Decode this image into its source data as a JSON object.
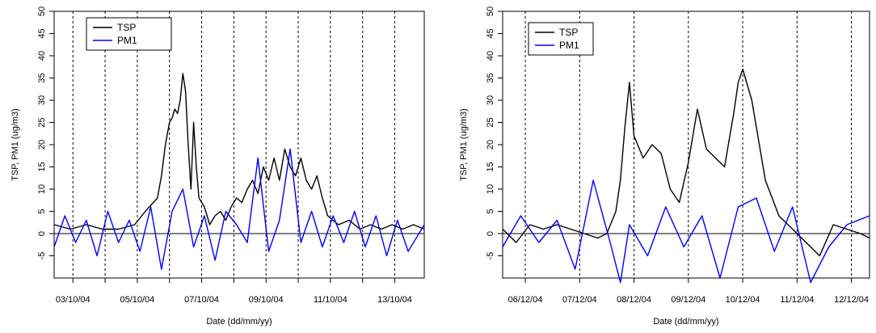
{
  "chart_data": [
    {
      "type": "line",
      "xlabel": "Date (dd/mm/yy)",
      "ylabel": "TSP, PM1 (ug/m3)",
      "xlim": [
        "2004-10-02T10:00",
        "2004-10-13T22:00"
      ],
      "ylim": [
        -10,
        50
      ],
      "y_ticks": [
        -5,
        0,
        5,
        10,
        15,
        20,
        25,
        30,
        35,
        40,
        45,
        50
      ],
      "x_ticks": [
        {
          "x": "2004-10-03",
          "label": "03/10/04"
        },
        {
          "x": "2004-10-04",
          "label": ""
        },
        {
          "x": "2004-10-05",
          "label": "05/10/04"
        },
        {
          "x": "2004-10-06",
          "label": ""
        },
        {
          "x": "2004-10-07",
          "label": "07/10/04"
        },
        {
          "x": "2004-10-08",
          "label": ""
        },
        {
          "x": "2004-10-09",
          "label": "09/10/04"
        },
        {
          "x": "2004-10-10",
          "label": ""
        },
        {
          "x": "2004-10-11",
          "label": "11/10/04"
        },
        {
          "x": "2004-10-12",
          "label": ""
        },
        {
          "x": "2004-10-13",
          "label": "13/10/04"
        }
      ],
      "day_gridlines": "dashed vertical at each midnight",
      "zero_line": true,
      "legend": "top-left",
      "series": [
        {
          "name": "TSP",
          "color": "#000000",
          "x": [
            "2004-10-02T10:00",
            "2004-10-02T22:00",
            "2004-10-03T10:00",
            "2004-10-03T22:00",
            "2004-10-04T10:00",
            "2004-10-04T22:00",
            "2004-10-05T06:00",
            "2004-10-05T12:00",
            "2004-10-05T15:00",
            "2004-10-05T18:00",
            "2004-10-05T21:00",
            "2004-10-06T00:00",
            "2004-10-06T02:00",
            "2004-10-06T04:00",
            "2004-10-06T06:00",
            "2004-10-06T08:00",
            "2004-10-06T10:00",
            "2004-10-06T12:00",
            "2004-10-06T14:00",
            "2004-10-06T16:00",
            "2004-10-06T18:00",
            "2004-10-06T20:00",
            "2004-10-06T22:00",
            "2004-10-07T02:00",
            "2004-10-07T06:00",
            "2004-10-07T10:00",
            "2004-10-07T14:00",
            "2004-10-07T18:00",
            "2004-10-07T22:00",
            "2004-10-08T02:00",
            "2004-10-08T06:00",
            "2004-10-08T10:00",
            "2004-10-08T14:00",
            "2004-10-08T18:00",
            "2004-10-08T22:00",
            "2004-10-09T02:00",
            "2004-10-09T06:00",
            "2004-10-09T10:00",
            "2004-10-09T14:00",
            "2004-10-09T18:00",
            "2004-10-09T22:00",
            "2004-10-10T02:00",
            "2004-10-10T06:00",
            "2004-10-10T10:00",
            "2004-10-10T14:00",
            "2004-10-10T18:00",
            "2004-10-10T22:00",
            "2004-10-11T06:00",
            "2004-10-11T14:00",
            "2004-10-11T22:00",
            "2004-10-12T06:00",
            "2004-10-12T14:00",
            "2004-10-12T22:00",
            "2004-10-13T06:00",
            "2004-10-13T14:00",
            "2004-10-13T22:00"
          ],
          "y": [
            2,
            1,
            2,
            1,
            1,
            2,
            5,
            7,
            8,
            13,
            20,
            25,
            26,
            28,
            27,
            30,
            36,
            32,
            20,
            10,
            25,
            15,
            8,
            6,
            2,
            4,
            5,
            3,
            6,
            8,
            7,
            10,
            12,
            9,
            15,
            12,
            17,
            12,
            19,
            15,
            13,
            17,
            12,
            10,
            13,
            8,
            4,
            2,
            3,
            1,
            2,
            1,
            2,
            1,
            2,
            1
          ]
        },
        {
          "name": "PM1",
          "color": "#0000ff",
          "x": [
            "2004-10-02T10:00",
            "2004-10-02T18:00",
            "2004-10-03T02:00",
            "2004-10-03T10:00",
            "2004-10-03T18:00",
            "2004-10-04T02:00",
            "2004-10-04T10:00",
            "2004-10-04T18:00",
            "2004-10-05T02:00",
            "2004-10-05T10:00",
            "2004-10-05T18:00",
            "2004-10-06T02:00",
            "2004-10-06T10:00",
            "2004-10-06T18:00",
            "2004-10-07T02:00",
            "2004-10-07T10:00",
            "2004-10-07T18:00",
            "2004-10-08T02:00",
            "2004-10-08T10:00",
            "2004-10-08T18:00",
            "2004-10-09T02:00",
            "2004-10-09T10:00",
            "2004-10-09T18:00",
            "2004-10-10T02:00",
            "2004-10-10T10:00",
            "2004-10-10T18:00",
            "2004-10-11T02:00",
            "2004-10-11T10:00",
            "2004-10-11T18:00",
            "2004-10-12T02:00",
            "2004-10-12T10:00",
            "2004-10-12T18:00",
            "2004-10-13T02:00",
            "2004-10-13T10:00",
            "2004-10-13T22:00"
          ],
          "y": [
            -3,
            4,
            -2,
            3,
            -5,
            5,
            -2,
            3,
            -4,
            6,
            -8,
            5,
            10,
            -3,
            4,
            -6,
            5,
            2,
            -2,
            17,
            -4,
            3,
            19,
            -2,
            5,
            -3,
            4,
            -2,
            5,
            -3,
            4,
            -5,
            3,
            -4,
            2
          ]
        }
      ]
    },
    {
      "type": "line",
      "xlabel": "Date (dd/mm/yy)",
      "ylabel": "TSP, PM1 (ug/m3)",
      "xlim": [
        "2004-12-05T14:00",
        "2004-12-12T08:00"
      ],
      "ylim": [
        -10,
        50
      ],
      "y_ticks": [
        -5,
        0,
        5,
        10,
        15,
        20,
        25,
        30,
        35,
        40,
        45,
        50
      ],
      "x_ticks": [
        {
          "x": "2004-12-06",
          "label": "06/12/04"
        },
        {
          "x": "2004-12-07",
          "label": "07/12/04"
        },
        {
          "x": "2004-12-08",
          "label": "08/12/04"
        },
        {
          "x": "2004-12-09",
          "label": "09/12/04"
        },
        {
          "x": "2004-12-10",
          "label": "10/12/04"
        },
        {
          "x": "2004-12-11",
          "label": "11/12/04"
        },
        {
          "x": "2004-12-12",
          "label": "12/12/04"
        }
      ],
      "day_gridlines": "dashed vertical at each midnight",
      "zero_line": true,
      "legend": "top-left",
      "series": [
        {
          "name": "TSP",
          "color": "#000000",
          "x": [
            "2004-12-05T14:00",
            "2004-12-05T20:00",
            "2004-12-06T02:00",
            "2004-12-06T08:00",
            "2004-12-06T14:00",
            "2004-12-06T20:00",
            "2004-12-07T02:00",
            "2004-12-07T08:00",
            "2004-12-07T12:00",
            "2004-12-07T16:00",
            "2004-12-07T18:00",
            "2004-12-07T20:00",
            "2004-12-07T22:00",
            "2004-12-08T00:00",
            "2004-12-08T04:00",
            "2004-12-08T08:00",
            "2004-12-08T12:00",
            "2004-12-08T16:00",
            "2004-12-08T20:00",
            "2004-12-09T00:00",
            "2004-12-09T04:00",
            "2004-12-09T08:00",
            "2004-12-09T12:00",
            "2004-12-09T16:00",
            "2004-12-09T18:00",
            "2004-12-09T20:00",
            "2004-12-09T22:00",
            "2004-12-10T00:00",
            "2004-12-10T04:00",
            "2004-12-10T10:00",
            "2004-12-10T16:00",
            "2004-12-10T22:00",
            "2004-12-11T04:00",
            "2004-12-11T10:00",
            "2004-12-11T16:00",
            "2004-12-11T22:00",
            "2004-12-12T04:00",
            "2004-12-12T08:00"
          ],
          "y": [
            1,
            -2,
            2,
            1,
            2,
            1,
            0,
            -1,
            0,
            5,
            12,
            24,
            34,
            22,
            17,
            20,
            18,
            10,
            7,
            16,
            28,
            19,
            17,
            15,
            21,
            27,
            34,
            37,
            30,
            12,
            4,
            1,
            -2,
            -5,
            2,
            1,
            0,
            -1
          ]
        },
        {
          "name": "PM1",
          "color": "#0000ff",
          "x": [
            "2004-12-05T14:00",
            "2004-12-05T22:00",
            "2004-12-06T06:00",
            "2004-12-06T14:00",
            "2004-12-06T22:00",
            "2004-12-07T06:00",
            "2004-12-07T14:00",
            "2004-12-07T18:00",
            "2004-12-07T22:00",
            "2004-12-08T06:00",
            "2004-12-08T14:00",
            "2004-12-08T22:00",
            "2004-12-09T06:00",
            "2004-12-09T14:00",
            "2004-12-09T22:00",
            "2004-12-10T06:00",
            "2004-12-10T14:00",
            "2004-12-10T22:00",
            "2004-12-11T06:00",
            "2004-12-11T14:00",
            "2004-12-11T22:00",
            "2004-12-12T08:00"
          ],
          "y": [
            -3,
            4,
            -2,
            3,
            -8,
            12,
            -3,
            -11,
            2,
            -5,
            6,
            -3,
            4,
            -10,
            6,
            8,
            -4,
            6,
            -11,
            -3,
            2,
            4
          ]
        }
      ]
    }
  ]
}
